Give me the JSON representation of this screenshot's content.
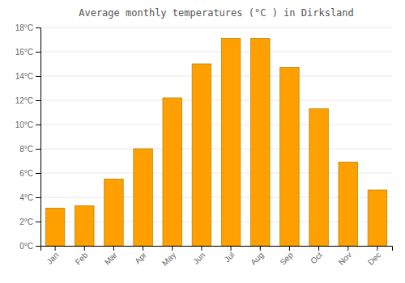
{
  "chart_data": {
    "type": "bar",
    "title": "Average monthly temperatures (°C ) in Dirksland",
    "categories": [
      "Jan",
      "Feb",
      "Mar",
      "Apr",
      "May",
      "Jun",
      "Jul",
      "Aug",
      "Sep",
      "Oct",
      "Nov",
      "Dec"
    ],
    "values": [
      3.1,
      3.3,
      5.5,
      8.0,
      12.2,
      15.0,
      17.1,
      17.1,
      14.7,
      11.3,
      6.9,
      4.6
    ],
    "color": "#FFA000",
    "ylim": [
      0,
      18
    ],
    "yticks": [
      {
        "value": 0,
        "label": "0°C"
      },
      {
        "value": 2,
        "label": "2°C"
      },
      {
        "value": 4,
        "label": "4°C"
      },
      {
        "value": 6,
        "label": "6°C"
      },
      {
        "value": 8,
        "label": "8°C"
      },
      {
        "value": 10,
        "label": "10°C"
      },
      {
        "value": 12,
        "label": "12°C"
      },
      {
        "value": 14,
        "label": "14°C"
      },
      {
        "value": 16,
        "label": "16°C"
      },
      {
        "value": 18,
        "label": "18°C"
      }
    ],
    "grid": true
  }
}
